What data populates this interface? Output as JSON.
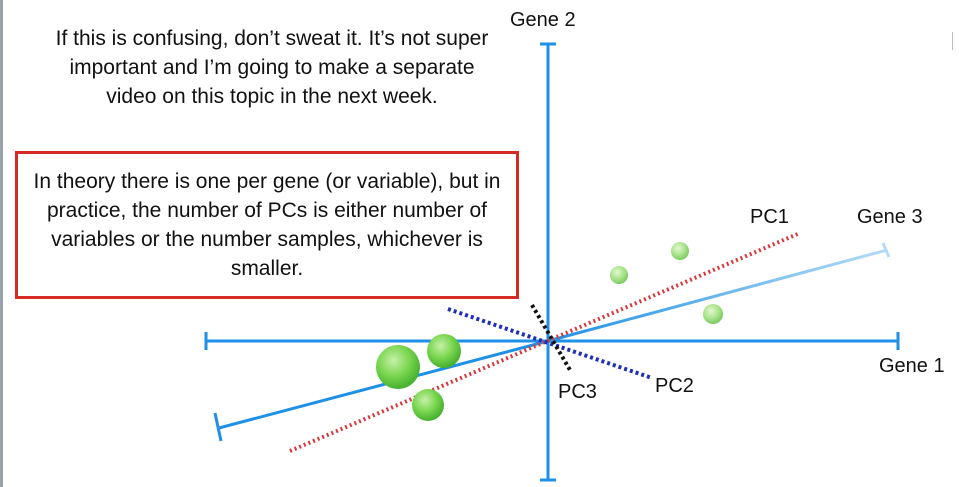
{
  "note": {
    "text": "If this is confusing, don’t sweat it. It’s not super important and I’m going to make a separate video on this topic in the next week."
  },
  "callout": {
    "text": "In theory there is one per gene (or variable), but in practice, the number of PCs is either number of variables or the number samples, whichever is smaller."
  },
  "labels": {
    "gene1": "Gene 1",
    "gene2": "Gene 2",
    "gene3": "Gene 3",
    "pc1": "PC1",
    "pc2": "PC2",
    "pc3": "PC3"
  },
  "colors": {
    "axis": "#1e90e6",
    "gene3_fade": "#a9d3f2",
    "pc1": "#d9383a",
    "pc2": "#1f2fb5",
    "pc3": "#111111",
    "callout_border": "#d62a25",
    "dot_fill": "#7ad64f",
    "dot_dark": "#3fae2a"
  }
}
